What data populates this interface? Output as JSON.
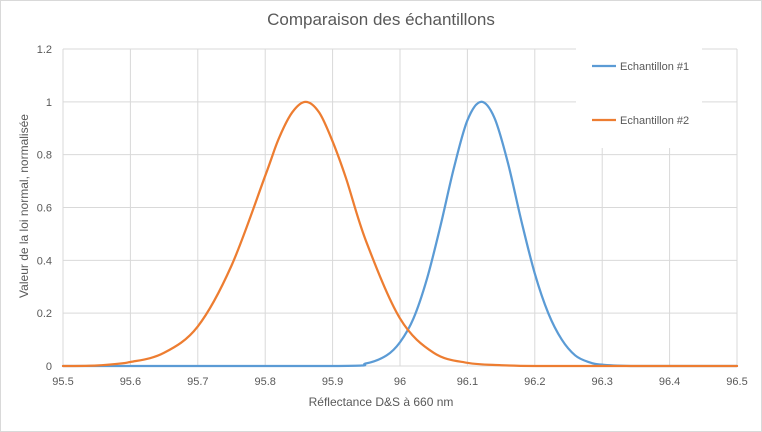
{
  "chart_data": {
    "type": "line",
    "title": "Comparaison des échantillons",
    "xlabel": "Réflectance D&S à 660 nm",
    "ylabel": "Valeur de la loi normal, normalisée",
    "xlim": [
      95.5,
      96.5
    ],
    "ylim": [
      0,
      1.2
    ],
    "x_ticks": [
      "95.5",
      "95.6",
      "95.7",
      "95.8",
      "95.9",
      "96",
      "96.1",
      "96.2",
      "96.3",
      "96.4",
      "96.5"
    ],
    "y_ticks": [
      "0",
      "0.2",
      "0.4",
      "0.6",
      "0.8",
      "1",
      "1.2"
    ],
    "grid": "vertical and horizontal",
    "legend_position": "top-right",
    "series": [
      {
        "name": "Echantillon #1",
        "color": "#5b9bd5",
        "x": [
          95.5,
          95.9,
          95.95,
          95.98,
          96.0,
          96.02,
          96.04,
          96.06,
          96.08,
          96.1,
          96.12,
          96.14,
          96.16,
          96.18,
          96.2,
          96.22,
          96.24,
          96.26,
          96.28,
          96.3,
          96.35,
          96.5
        ],
        "y": [
          0,
          0,
          0.01,
          0.04,
          0.09,
          0.18,
          0.33,
          0.53,
          0.75,
          0.93,
          1.0,
          0.94,
          0.77,
          0.55,
          0.35,
          0.2,
          0.1,
          0.04,
          0.015,
          0.005,
          0,
          0
        ]
      },
      {
        "name": "Echantillon #2",
        "color": "#ed7d31",
        "x": [
          95.5,
          95.55,
          95.6,
          95.65,
          95.7,
          95.75,
          95.8,
          95.82,
          95.84,
          95.86,
          95.88,
          95.9,
          95.92,
          95.95,
          96.0,
          96.05,
          96.1,
          96.15,
          96.2,
          96.3,
          96.5
        ],
        "y": [
          0,
          0.002,
          0.015,
          0.05,
          0.15,
          0.38,
          0.72,
          0.86,
          0.96,
          1.0,
          0.96,
          0.85,
          0.71,
          0.47,
          0.18,
          0.05,
          0.012,
          0.003,
          0,
          0,
          0
        ]
      }
    ]
  }
}
